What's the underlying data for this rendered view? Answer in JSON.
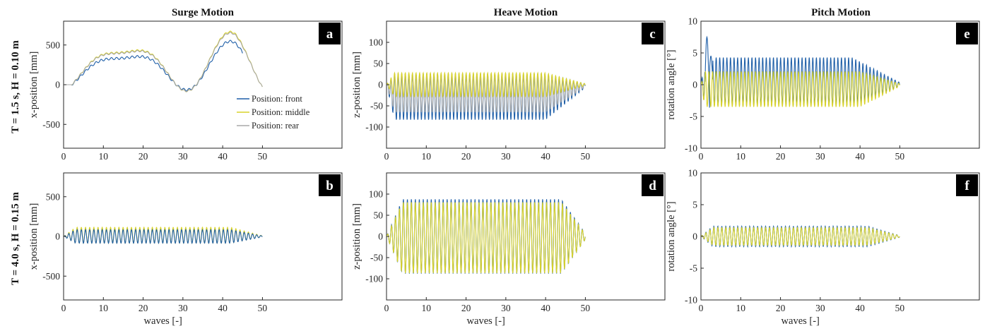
{
  "figure": {
    "column_titles": [
      "Surge Motion",
      "Heave Motion",
      "Pitch Motion"
    ],
    "row_titles": [
      "T = 1.5 s, H = 0.10 m",
      "T = 4.0 s, H = 0.15 m"
    ]
  },
  "colors": {
    "front": "#1f5fa8",
    "middle": "#d9d32a",
    "rear": "#a8a8a8"
  },
  "chart_data": [
    {
      "panel": "a",
      "type": "line",
      "row": 0,
      "col": 0,
      "title": "",
      "xlabel": "",
      "ylabel": "x-position [mm]",
      "xlim": [
        0,
        70
      ],
      "ylim": [
        -800,
        800
      ],
      "xticks": [
        0,
        10,
        20,
        30,
        40,
        50
      ],
      "yticks": [
        -500,
        0,
        500
      ],
      "legend": {
        "placement": "middle-right"
      },
      "series": [
        {
          "name": "Position: front",
          "color_key": "front",
          "kind": "surge",
          "end": 45,
          "scale": 0.82,
          "osc": 14,
          "period": 1.3
        },
        {
          "name": "Position: middle",
          "color_key": "middle",
          "kind": "surge",
          "end": 50,
          "scale": 1.0,
          "osc": 10,
          "period": 1.3
        },
        {
          "name": "Position: rear",
          "color_key": "rear",
          "kind": "surge",
          "end": 50,
          "scale": 0.98,
          "osc": 10,
          "period": 1.3
        }
      ]
    },
    {
      "panel": "b",
      "type": "line",
      "row": 1,
      "col": 0,
      "title": "",
      "xlabel": "waves [-]",
      "ylabel": "x-position [mm]",
      "xlim": [
        0,
        70
      ],
      "ylim": [
        -800,
        800
      ],
      "xticks": [
        0,
        10,
        20,
        30,
        40,
        50
      ],
      "yticks": [
        -500,
        0,
        500
      ],
      "series": [
        {
          "color_key": "middle",
          "kind": "osc",
          "end": 50,
          "amp": 100,
          "offset": 15,
          "period": 1.05,
          "ramp": 3,
          "decay": 42
        },
        {
          "color_key": "front",
          "kind": "osc",
          "end": 50,
          "amp": 85,
          "offset": 0,
          "period": 1.05,
          "ramp": 3,
          "decay": 42
        }
      ]
    },
    {
      "panel": "c",
      "type": "line",
      "row": 0,
      "col": 1,
      "title": "",
      "xlabel": "",
      "ylabel": "z-position [mm]",
      "xlim": [
        0,
        70
      ],
      "ylim": [
        -150,
        150
      ],
      "xticks": [
        0,
        10,
        20,
        30,
        40,
        50
      ],
      "yticks": [
        -100,
        -50,
        0,
        50,
        100
      ],
      "series": [
        {
          "color_key": "front",
          "kind": "osc",
          "end": 50,
          "amp": 55,
          "offset": -28,
          "period": 0.9,
          "ramp": 2,
          "decay": 40
        },
        {
          "color_key": "rear",
          "kind": "osc",
          "end": 50,
          "amp": 45,
          "offset": -20,
          "period": 0.9,
          "ramp": 2,
          "decay": 40
        },
        {
          "color_key": "middle",
          "kind": "osc",
          "end": 50,
          "amp": 28,
          "offset": 0,
          "period": 0.9,
          "ramp": 2,
          "decay": 40
        }
      ]
    },
    {
      "panel": "d",
      "type": "line",
      "row": 1,
      "col": 1,
      "title": "",
      "xlabel": "waves [-]",
      "ylabel": "z-position [mm]",
      "xlim": [
        0,
        70
      ],
      "ylim": [
        -150,
        150
      ],
      "xticks": [
        0,
        10,
        20,
        30,
        40,
        50
      ],
      "yticks": [
        -100,
        -50,
        0,
        50,
        100
      ],
      "series": [
        {
          "color_key": "front",
          "kind": "osc",
          "end": 50,
          "amp": 88,
          "offset": 0,
          "period": 1.0,
          "ramp": 4,
          "decay": 44
        },
        {
          "color_key": "middle",
          "kind": "osc",
          "end": 50,
          "amp": 84,
          "offset": -3,
          "period": 1.0,
          "ramp": 4,
          "decay": 44
        }
      ]
    },
    {
      "panel": "e",
      "type": "line",
      "row": 0,
      "col": 2,
      "title": "",
      "xlabel": "",
      "ylabel": "rotation angle [°]",
      "xlim": [
        0,
        70
      ],
      "ylim": [
        -10,
        10
      ],
      "xticks": [
        0,
        10,
        20,
        30,
        40,
        50
      ],
      "yticks": [
        -10,
        -5,
        0,
        5,
        10
      ],
      "series": [
        {
          "color_key": "front",
          "kind": "osc",
          "end": 50,
          "amp": 3.8,
          "offset": 0.5,
          "period": 0.9,
          "ramp": 1,
          "decay": 38,
          "spike": 7.5
        },
        {
          "color_key": "middle",
          "kind": "osc",
          "end": 50,
          "amp": 2.8,
          "offset": -0.7,
          "period": 0.9,
          "ramp": 1,
          "decay": 40
        }
      ]
    },
    {
      "panel": "f",
      "type": "line",
      "row": 1,
      "col": 2,
      "title": "",
      "xlabel": "waves [-]",
      "ylabel": "rotation angle [°]",
      "xlim": [
        0,
        70
      ],
      "ylim": [
        -10,
        10
      ],
      "xticks": [
        0,
        10,
        20,
        30,
        40,
        50
      ],
      "yticks": [
        -10,
        -5,
        0,
        5,
        10
      ],
      "series": [
        {
          "color_key": "front",
          "kind": "osc",
          "end": 50,
          "amp": 1.6,
          "offset": 0,
          "period": 1.0,
          "ramp": 3,
          "decay": 42
        },
        {
          "color_key": "middle",
          "kind": "osc",
          "end": 50,
          "amp": 1.4,
          "offset": 0,
          "period": 1.0,
          "ramp": 3,
          "decay": 42
        }
      ]
    }
  ]
}
